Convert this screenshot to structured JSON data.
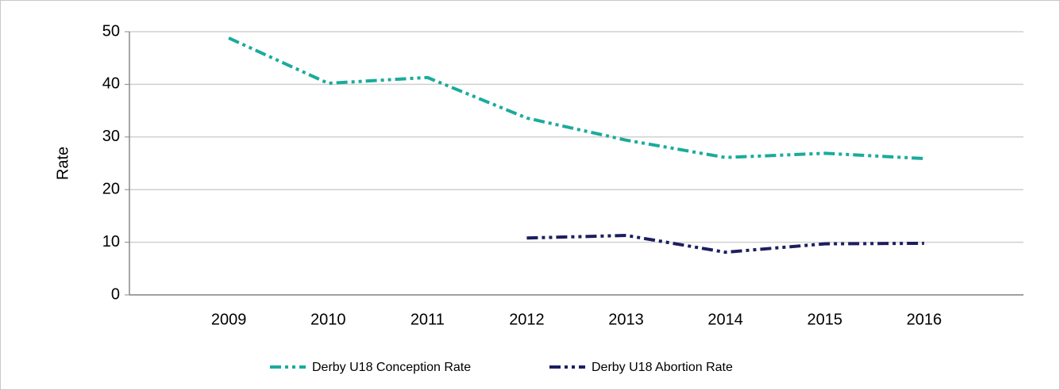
{
  "chart_data": {
    "type": "line",
    "y_label": "Rate",
    "x": [
      2009,
      2010,
      2011,
      2012,
      2013,
      2014,
      2015,
      2016
    ],
    "xlim": [
      2008,
      2017
    ],
    "xticks": [
      2009,
      2010,
      2011,
      2012,
      2013,
      2014,
      2015,
      2016
    ],
    "ylim": [
      0,
      50
    ],
    "yticks": [
      0,
      10,
      20,
      30,
      40,
      50
    ],
    "grid": true,
    "legend": "bottom",
    "series": [
      {
        "name": "Derby U18 Conception Rate",
        "color": "#1aab9b",
        "values": [
          48.8,
          40.2,
          41.3,
          33.6,
          29.4,
          26.1,
          26.9,
          25.9
        ]
      },
      {
        "name": "Derby U18 Abortion Rate",
        "color": "#1b1f5e",
        "values": [
          null,
          null,
          null,
          10.8,
          11.3,
          8.1,
          9.7,
          9.8
        ]
      }
    ]
  }
}
